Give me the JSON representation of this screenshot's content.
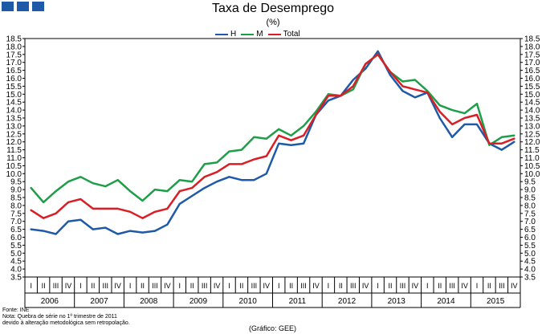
{
  "title": "Taxa de Desemprego",
  "subtitle": "(%)",
  "source": "Fonte: INE",
  "note_line1": "Nota: Quebra de série no 1º trimestre de 2011",
  "note_line2": "devido à alteração metodológica sem retropolação.",
  "credit": "(Gráfico: GEE)",
  "colors": {
    "H": "#1f5aa8",
    "M": "#1e9e48",
    "Total": "#d81f26",
    "logo": "#1f5aa8"
  },
  "chart_data": {
    "type": "line",
    "title": "Taxa de Desemprego",
    "ylabel": "(%)",
    "ylim": [
      3.5,
      18.5
    ],
    "ytick_step": 0.5,
    "quarter_labels": [
      "I",
      "II",
      "III",
      "IV"
    ],
    "years": [
      "2006",
      "2007",
      "2008",
      "2009",
      "2010",
      "2011",
      "2012",
      "2013",
      "2014",
      "2015"
    ],
    "series": [
      {
        "name": "H",
        "values": [
          6.5,
          6.4,
          6.2,
          7.0,
          7.1,
          6.5,
          6.6,
          6.2,
          6.4,
          6.3,
          6.4,
          6.8,
          8.1,
          8.6,
          9.1,
          9.5,
          9.8,
          9.6,
          9.6,
          10.0,
          11.9,
          11.8,
          11.9,
          13.7,
          14.6,
          14.9,
          15.9,
          16.6,
          17.7,
          16.2,
          15.2,
          14.8,
          15.1,
          13.5,
          12.3,
          13.1,
          13.1,
          11.9,
          11.5,
          12.0
        ]
      },
      {
        "name": "M",
        "values": [
          9.1,
          8.2,
          8.9,
          9.5,
          9.8,
          9.4,
          9.2,
          9.6,
          8.9,
          8.3,
          9.0,
          8.9,
          9.6,
          9.5,
          10.6,
          10.7,
          11.4,
          11.5,
          12.3,
          12.2,
          12.8,
          12.4,
          13.0,
          13.9,
          15.0,
          14.9,
          15.3,
          16.9,
          17.5,
          16.4,
          15.8,
          15.9,
          15.2,
          14.3,
          14.0,
          13.8,
          14.4,
          11.8,
          12.3,
          12.4
        ]
      },
      {
        "name": "Total",
        "values": [
          7.7,
          7.2,
          7.5,
          8.2,
          8.4,
          7.8,
          7.8,
          7.8,
          7.6,
          7.2,
          7.6,
          7.8,
          8.9,
          9.1,
          9.8,
          10.1,
          10.6,
          10.6,
          10.9,
          11.1,
          12.4,
          12.1,
          12.4,
          13.7,
          14.9,
          14.9,
          15.5,
          16.9,
          17.5,
          16.4,
          15.5,
          15.3,
          15.1,
          13.9,
          13.1,
          13.5,
          13.7,
          11.9,
          11.9,
          12.2
        ]
      }
    ]
  }
}
